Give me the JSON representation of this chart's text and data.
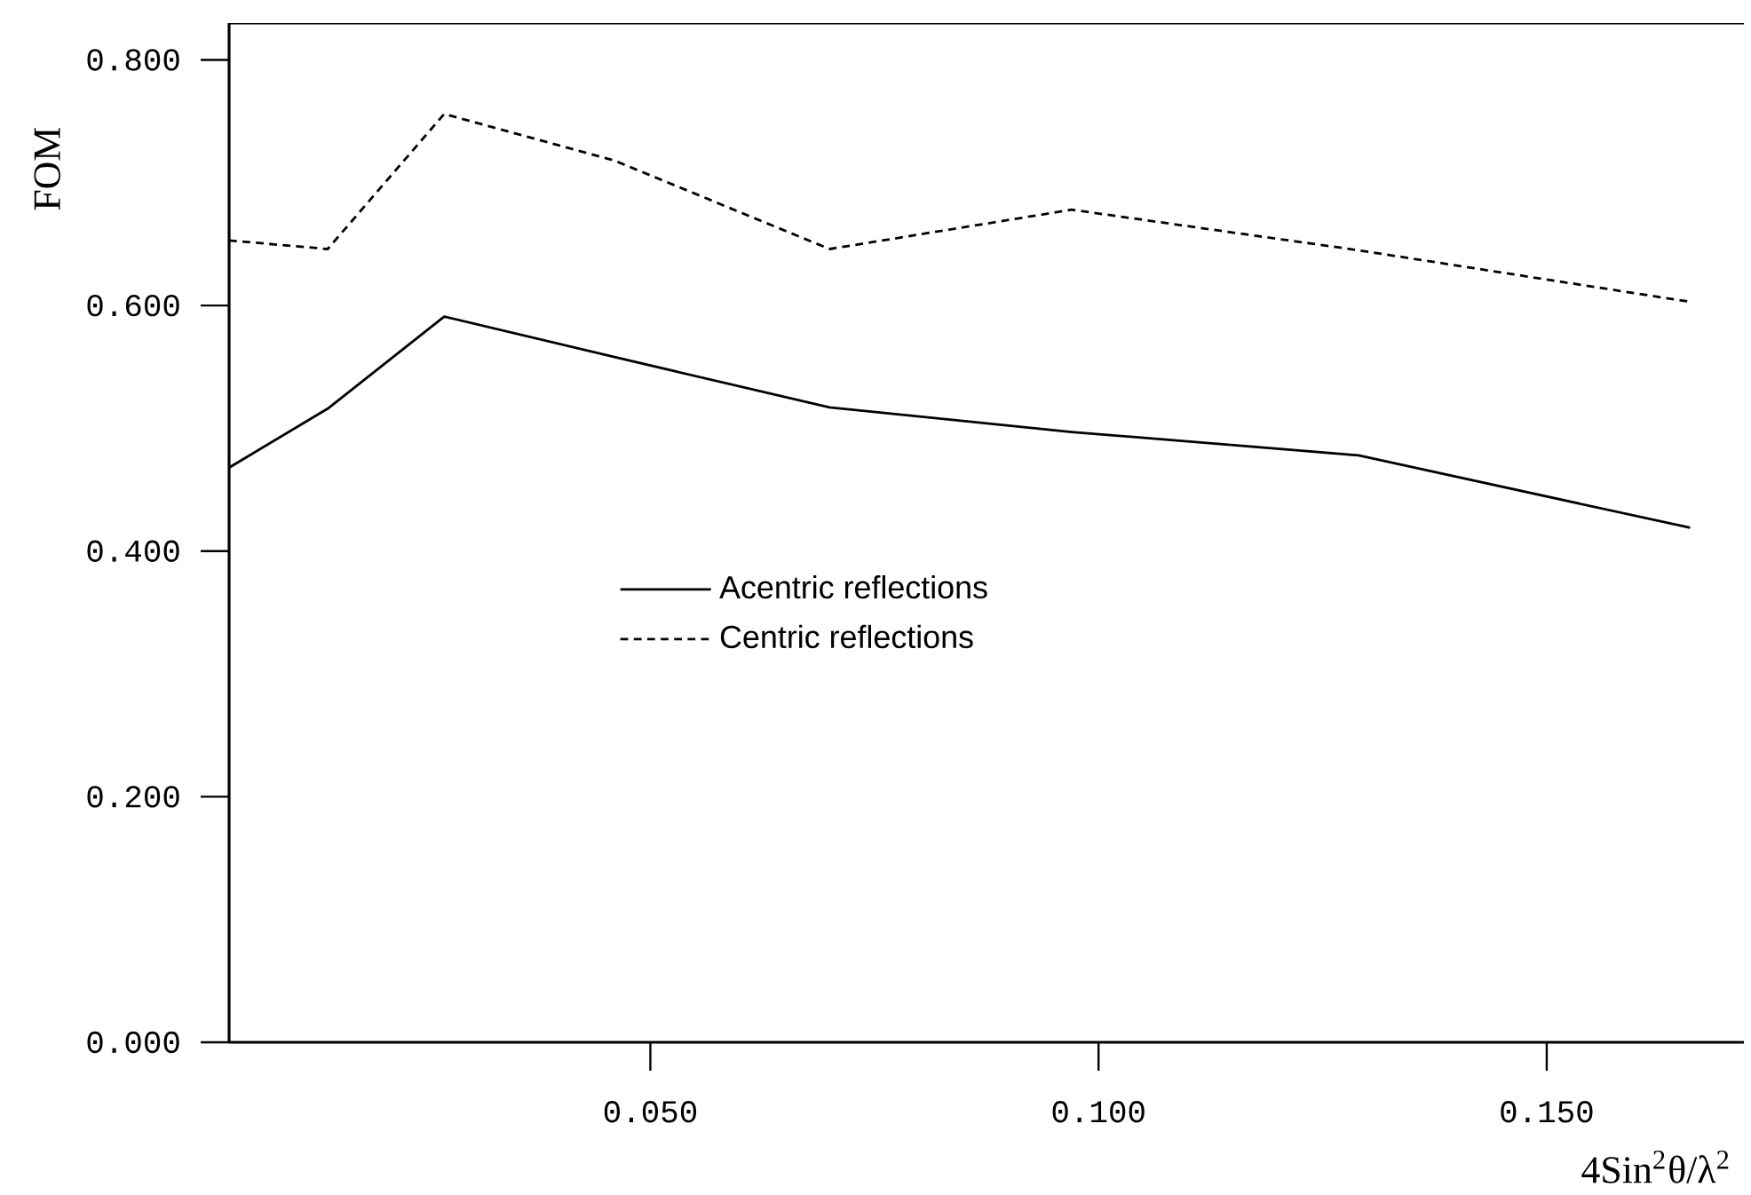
{
  "chart_data": {
    "type": "line",
    "xlabel": "4Sin$^{2}$θ/λ$^{2}$",
    "ylabel": "FOM",
    "x": [
      0.003,
      0.014,
      0.027,
      0.046,
      0.07,
      0.097,
      0.129,
      0.166
    ],
    "series": [
      {
        "name": "Acentric reflections",
        "color": "#000000",
        "line_style": "solid",
        "values": [
          0.468,
          0.516,
          0.591,
          0.558,
          0.517,
          0.497,
          0.478,
          0.419
        ]
      },
      {
        "name": "Centric reflections",
        "color": "#000000",
        "line_style": "dashed",
        "values": [
          0.653,
          0.646,
          0.756,
          0.718,
          0.646,
          0.678,
          0.645,
          0.603
        ]
      }
    ],
    "xlim": [
      0.003,
      0.172
    ],
    "ylim": [
      0,
      0.83
    ],
    "xticks": [
      {
        "value": 0.05,
        "label": "0.050"
      },
      {
        "value": 0.1,
        "label": "0.100"
      },
      {
        "value": 0.15,
        "label": "0.150"
      }
    ],
    "yticks": [
      {
        "value": 0,
        "label": "0.000"
      },
      {
        "value": 0.2,
        "label": "0.200"
      },
      {
        "value": 0.4,
        "label": "0.400"
      },
      {
        "value": 0.6,
        "label": "0.600"
      },
      {
        "value": 0.8,
        "label": "0.800"
      }
    ],
    "grid": false,
    "legend": "left",
    "marker": "none"
  }
}
